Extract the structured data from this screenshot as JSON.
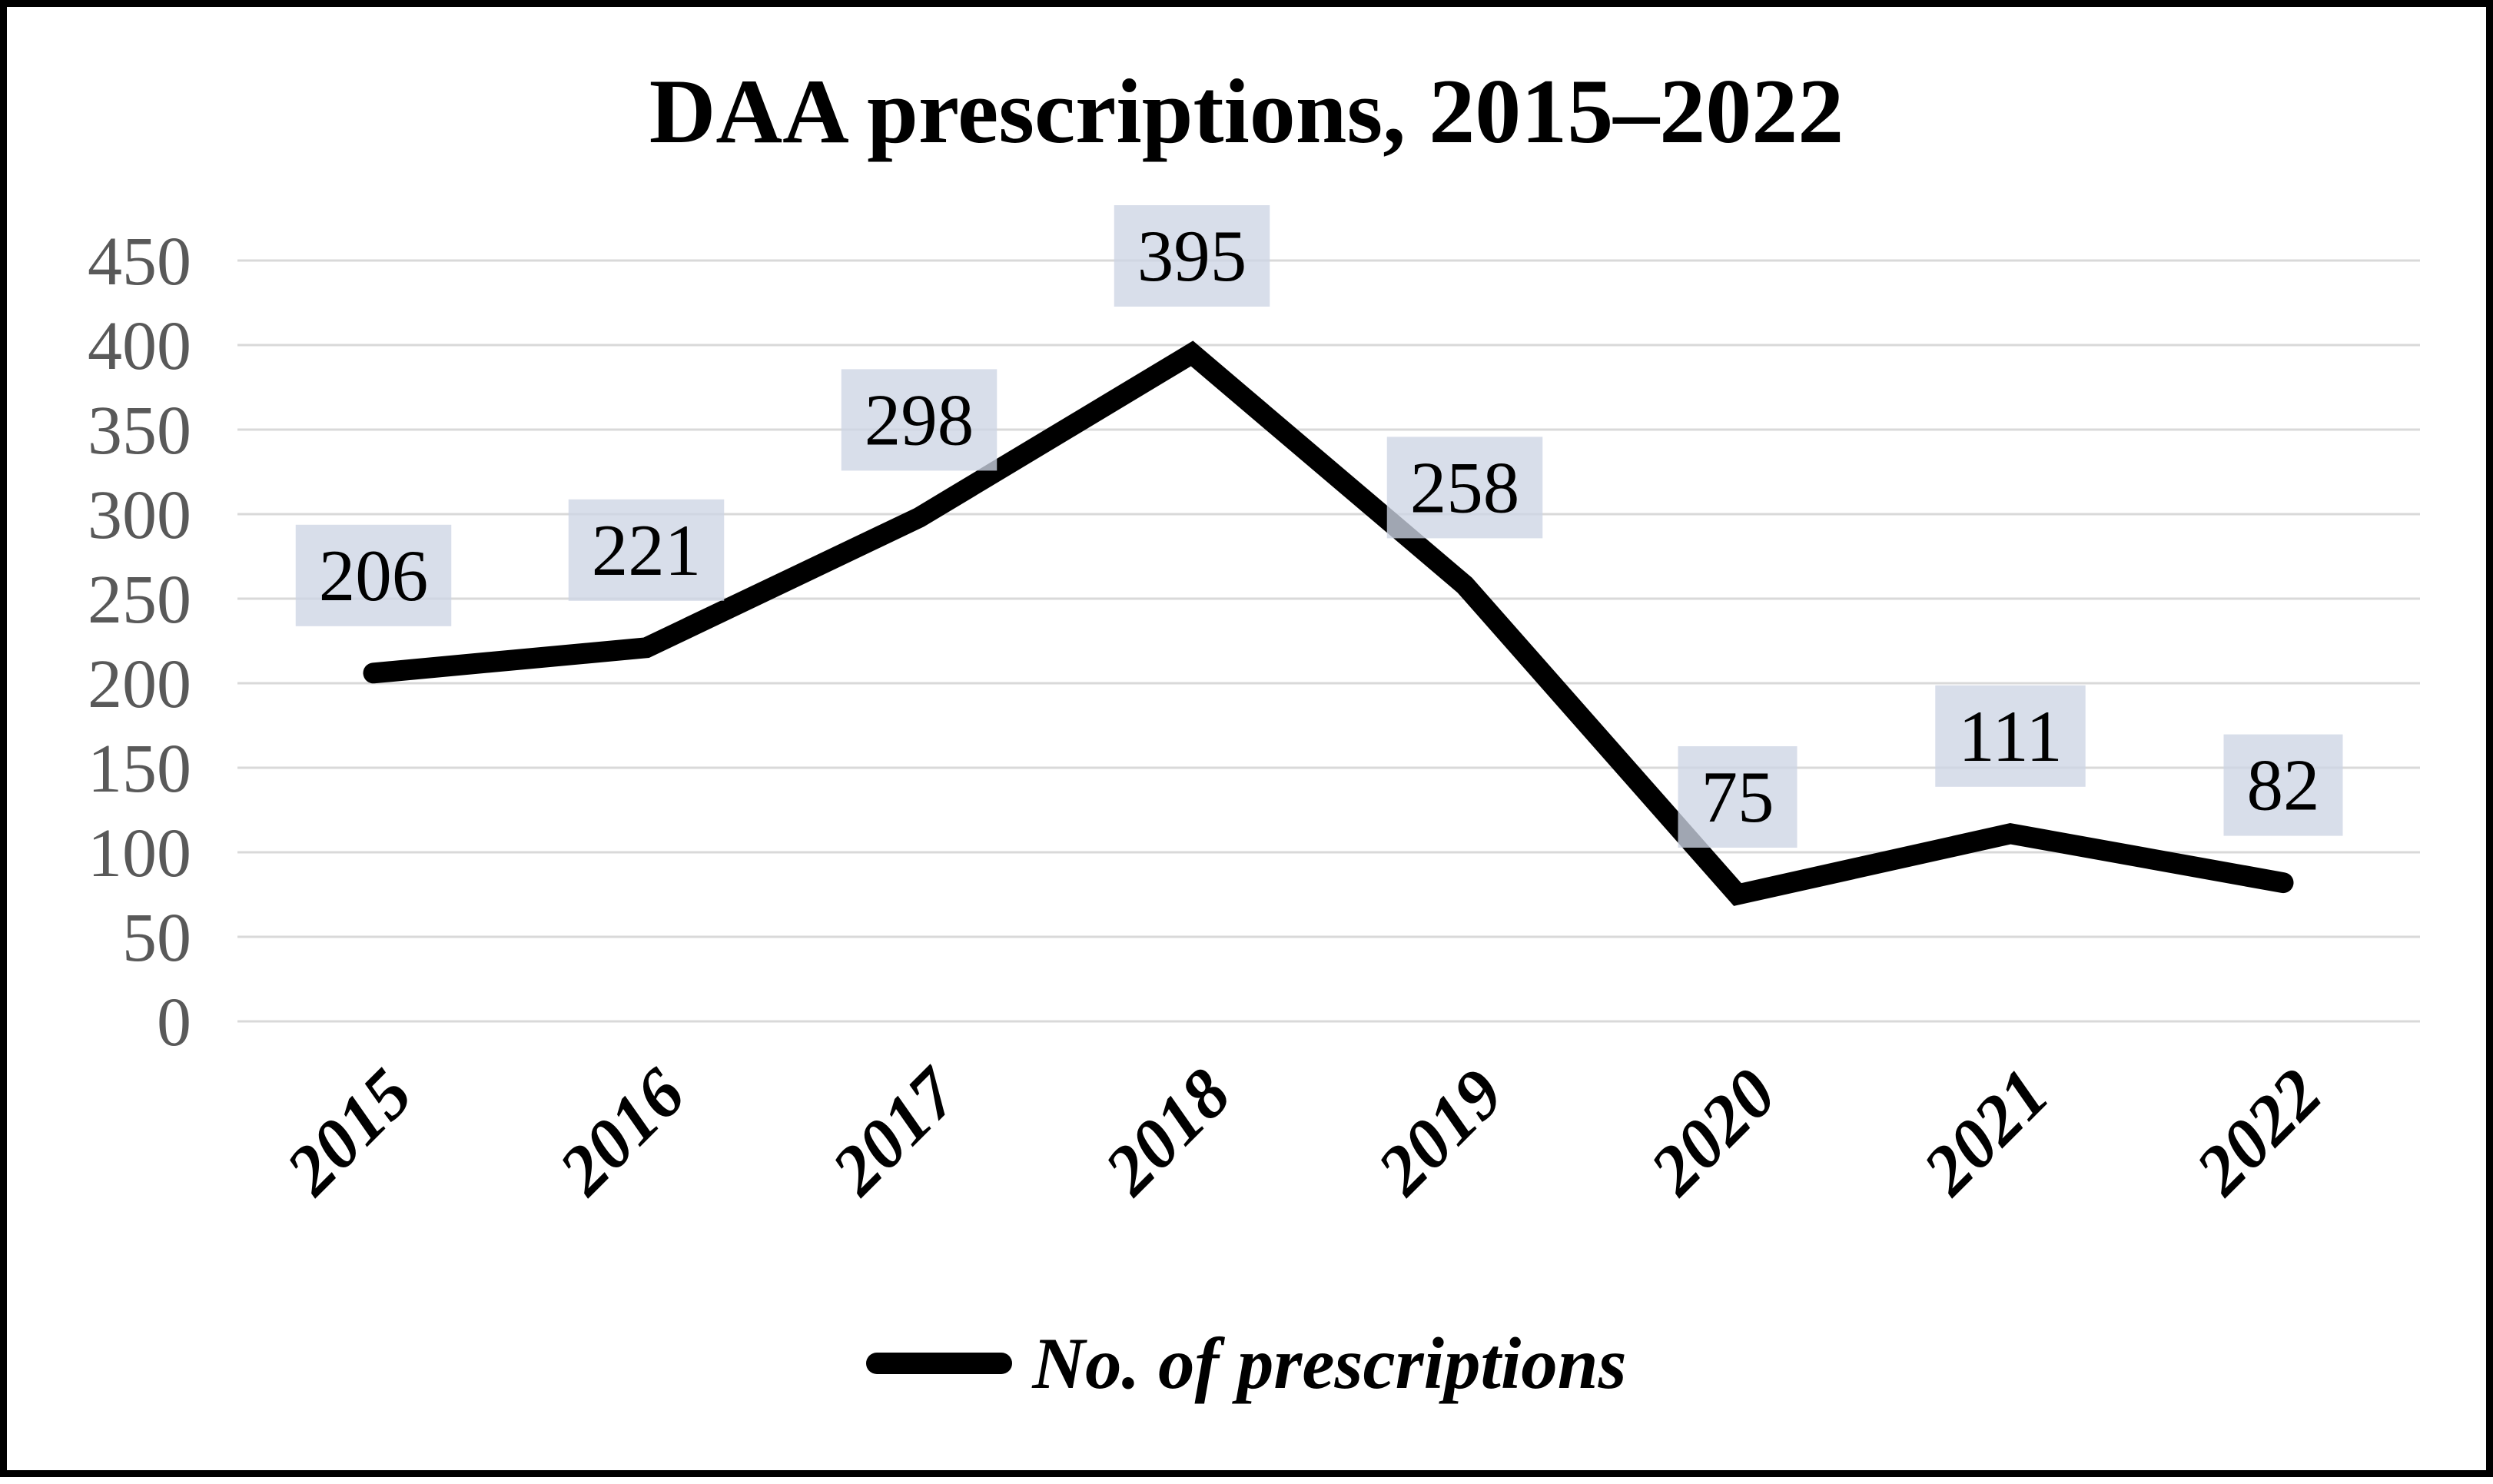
{
  "chart_data": {
    "type": "line",
    "title": "DAA prescriptions, 2015–2022",
    "categories": [
      "2015",
      "2016",
      "2017",
      "2018",
      "2019",
      "2020",
      "2021",
      "2022"
    ],
    "series": [
      {
        "name": "No. of prescriptions",
        "values": [
          206,
          221,
          298,
          395,
          258,
          75,
          111,
          82
        ]
      }
    ],
    "xlabel": "",
    "ylabel": "",
    "ylim": [
      0,
      450
    ],
    "yticks": [
      450,
      400,
      350,
      300,
      250,
      200,
      150,
      100,
      50,
      0
    ],
    "grid": true,
    "data_labels_shown": true,
    "legend_position": "bottom"
  },
  "colors": {
    "line": "#000000",
    "gridline": "#d9d9d9",
    "ytick_text": "#595959",
    "xtick_text": "#000000",
    "data_label_text": "#000000",
    "data_label_bg": "#cdd5e4",
    "data_label_bg_opacity": "0.78",
    "frame_border": "#000000",
    "background": "#ffffff"
  }
}
